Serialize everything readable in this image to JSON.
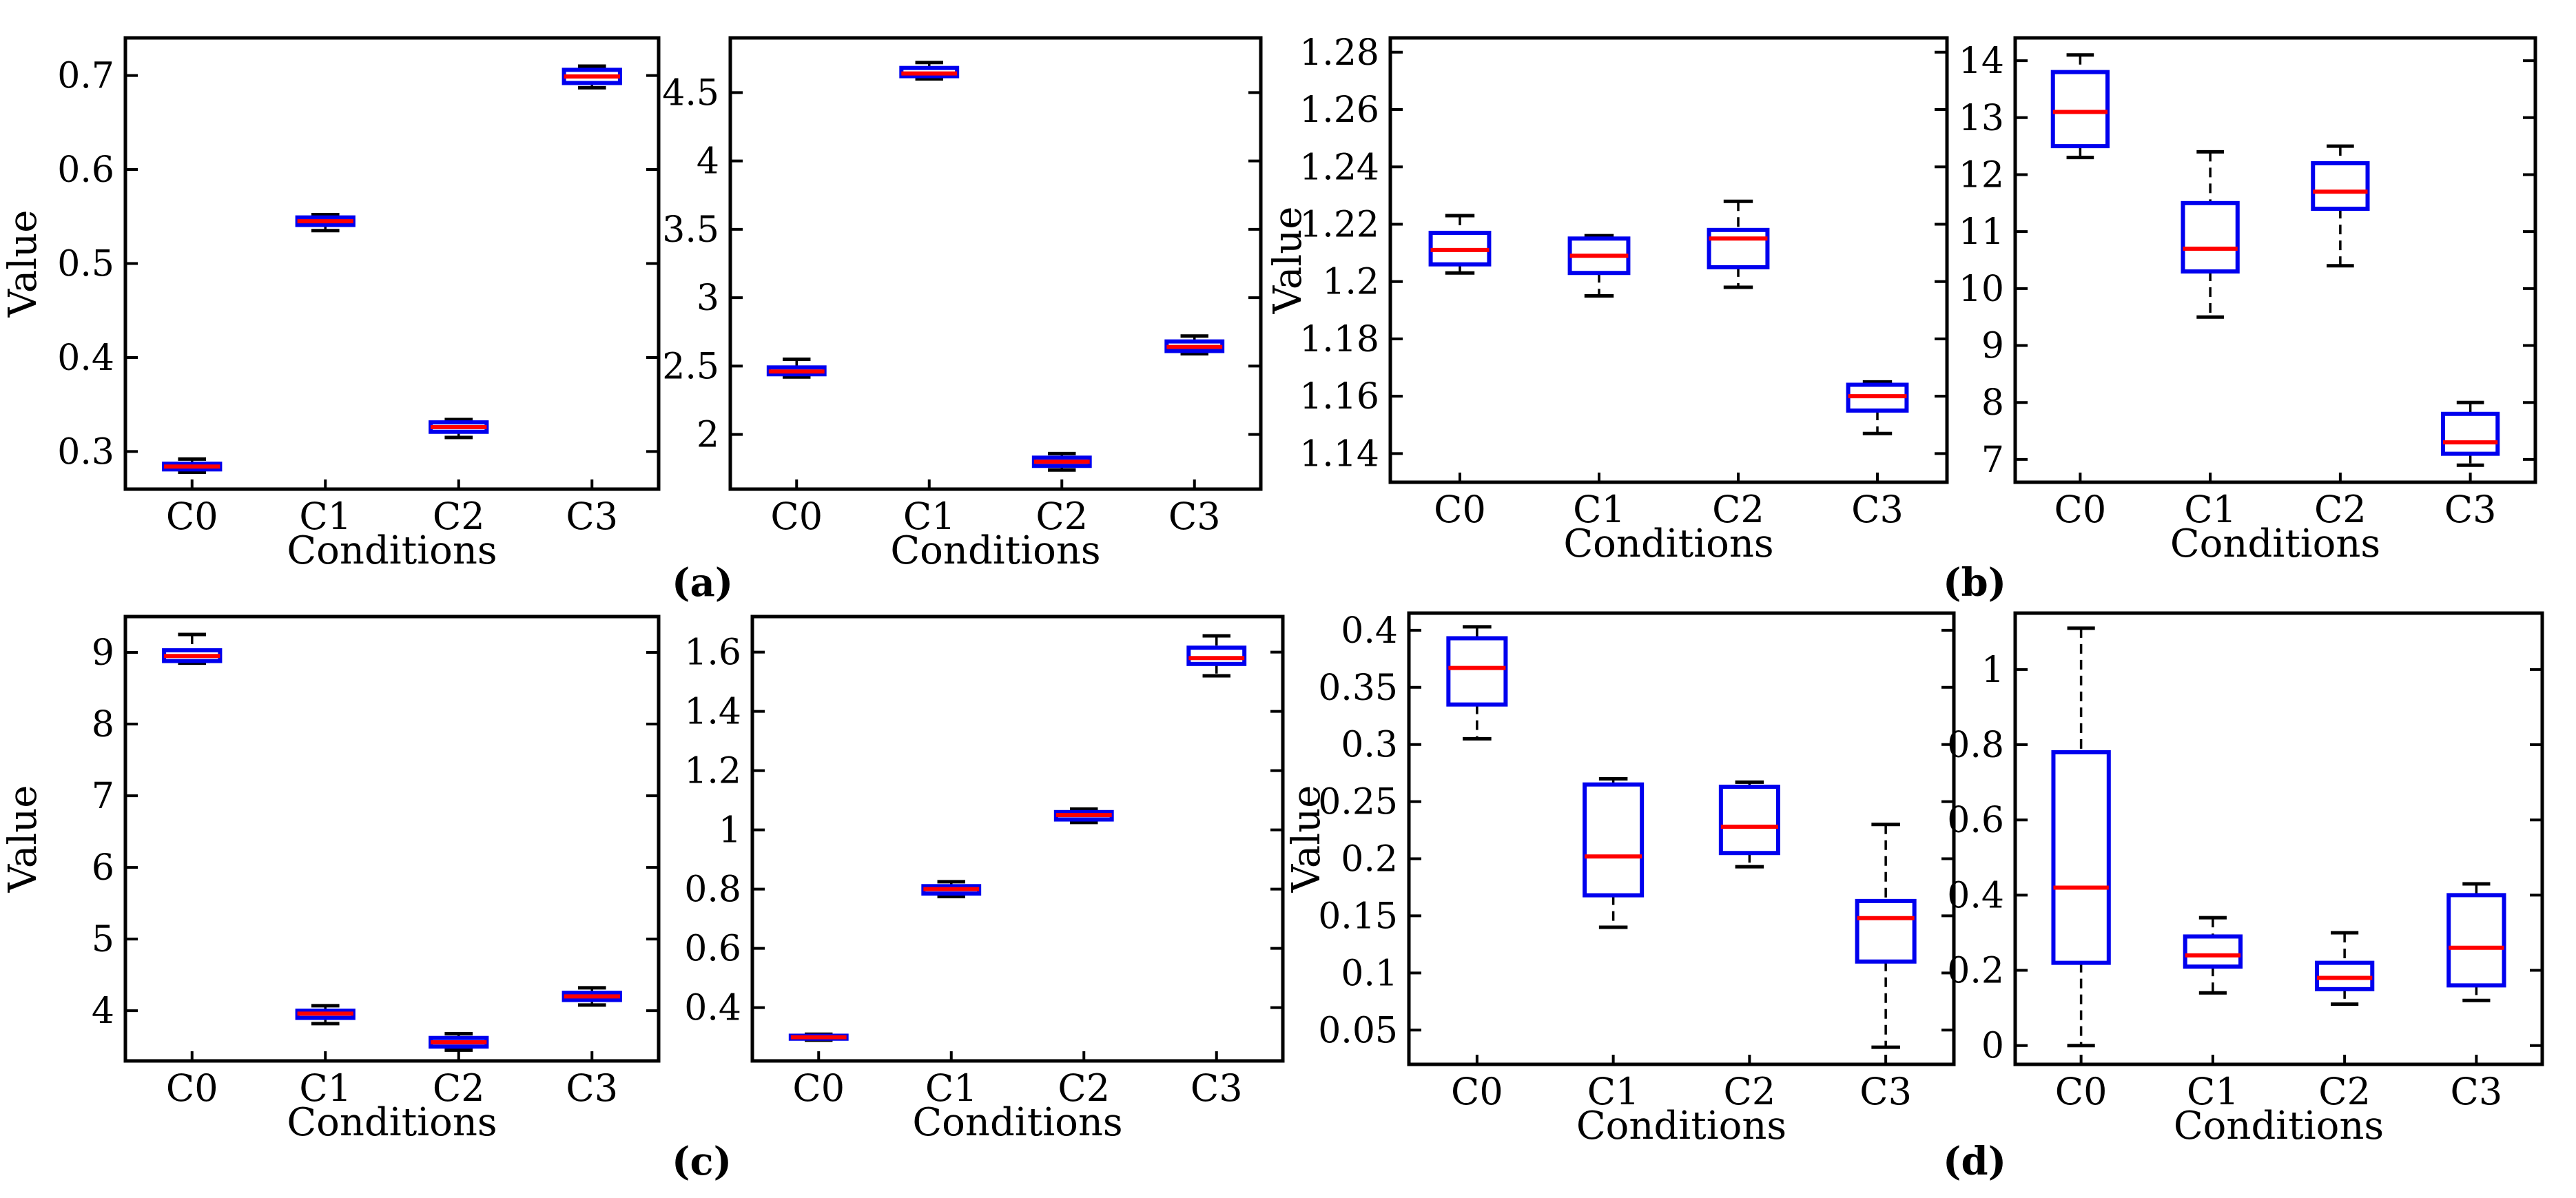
{
  "panel_labels": [
    "(a)",
    "(b)",
    "(c)",
    "(d)"
  ],
  "chart_data": [
    {
      "type": "box",
      "xlabel": "Conditions",
      "ylabel": "Value",
      "categories": [
        "C0",
        "C1",
        "C2",
        "C3"
      ],
      "ylim": [
        0.26,
        0.74
      ],
      "yticks": [
        0.3,
        0.4,
        0.5,
        0.6,
        0.7
      ],
      "yticklabels": [
        "0.3",
        "0.4",
        "0.5",
        "0.6",
        "0.7"
      ],
      "boxes": [
        {
          "low": 0.278,
          "q1": 0.281,
          "median": 0.284,
          "q3": 0.287,
          "high": 0.292
        },
        {
          "low": 0.535,
          "q1": 0.541,
          "median": 0.545,
          "q3": 0.549,
          "high": 0.552
        },
        {
          "low": 0.315,
          "q1": 0.321,
          "median": 0.326,
          "q3": 0.331,
          "high": 0.334
        },
        {
          "low": 0.687,
          "q1": 0.692,
          "median": 0.699,
          "q3": 0.706,
          "high": 0.71
        }
      ]
    },
    {
      "type": "box",
      "xlabel": "Conditions",
      "ylabel": "",
      "categories": [
        "C0",
        "C1",
        "C2",
        "C3"
      ],
      "ylim": [
        1.6,
        4.9
      ],
      "yticks": [
        2,
        2.5,
        3,
        3.5,
        4,
        4.5
      ],
      "yticklabels": [
        "2",
        "2.5",
        "3",
        "3.5",
        "4",
        "4.5"
      ],
      "boxes": [
        {
          "low": 2.42,
          "q1": 2.44,
          "median": 2.46,
          "q3": 2.49,
          "high": 2.55
        },
        {
          "low": 4.6,
          "q1": 4.62,
          "median": 4.64,
          "q3": 4.68,
          "high": 4.72
        },
        {
          "low": 1.74,
          "q1": 1.77,
          "median": 1.8,
          "q3": 1.83,
          "high": 1.86
        },
        {
          "low": 2.59,
          "q1": 2.61,
          "median": 2.64,
          "q3": 2.68,
          "high": 2.72
        }
      ]
    },
    {
      "type": "box",
      "xlabel": "Conditions",
      "ylabel": "Value",
      "categories": [
        "C0",
        "C1",
        "C2",
        "C3"
      ],
      "ylim": [
        1.13,
        1.285
      ],
      "yticks": [
        1.14,
        1.16,
        1.18,
        1.2,
        1.22,
        1.24,
        1.26,
        1.28
      ],
      "yticklabels": [
        "1.14",
        "1.16",
        "1.18",
        "1.2",
        "1.22",
        "1.24",
        "1.26",
        "1.28"
      ],
      "boxes": [
        {
          "low": 1.203,
          "q1": 1.206,
          "median": 1.211,
          "q3": 1.217,
          "high": 1.223
        },
        {
          "low": 1.195,
          "q1": 1.203,
          "median": 1.209,
          "q3": 1.215,
          "high": 1.216
        },
        {
          "low": 1.198,
          "q1": 1.205,
          "median": 1.215,
          "q3": 1.218,
          "high": 1.228
        },
        {
          "low": 1.147,
          "q1": 1.155,
          "median": 1.16,
          "q3": 1.164,
          "high": 1.165
        }
      ]
    },
    {
      "type": "box",
      "xlabel": "Conditions",
      "ylabel": "",
      "categories": [
        "C0",
        "C1",
        "C2",
        "C3"
      ],
      "ylim": [
        6.6,
        14.4
      ],
      "yticks": [
        7,
        8,
        9,
        10,
        11,
        12,
        13,
        14
      ],
      "yticklabels": [
        "7",
        "8",
        "9",
        "10",
        "11",
        "12",
        "13",
        "14"
      ],
      "boxes": [
        {
          "low": 12.3,
          "q1": 12.5,
          "median": 13.1,
          "q3": 13.8,
          "high": 14.1
        },
        {
          "low": 9.5,
          "q1": 10.3,
          "median": 10.7,
          "q3": 11.5,
          "high": 12.4
        },
        {
          "low": 10.4,
          "q1": 11.4,
          "median": 11.7,
          "q3": 12.2,
          "high": 12.5
        },
        {
          "low": 6.9,
          "q1": 7.1,
          "median": 7.3,
          "q3": 7.8,
          "high": 8.0
        }
      ]
    },
    {
      "type": "box",
      "xlabel": "Conditions",
      "ylabel": "Value",
      "categories": [
        "C0",
        "C1",
        "C2",
        "C3"
      ],
      "ylim": [
        3.3,
        9.5
      ],
      "yticks": [
        4,
        5,
        6,
        7,
        8,
        9
      ],
      "yticklabels": [
        "4",
        "5",
        "6",
        "7",
        "8",
        "9"
      ],
      "boxes": [
        {
          "low": 8.85,
          "q1": 8.88,
          "median": 8.95,
          "q3": 9.03,
          "high": 9.25
        },
        {
          "low": 3.82,
          "q1": 3.9,
          "median": 3.96,
          "q3": 4.0,
          "high": 4.07
        },
        {
          "low": 3.45,
          "q1": 3.5,
          "median": 3.56,
          "q3": 3.62,
          "high": 3.68
        },
        {
          "low": 4.08,
          "q1": 4.15,
          "median": 4.2,
          "q3": 4.25,
          "high": 4.32
        }
      ]
    },
    {
      "type": "box",
      "xlabel": "Conditions",
      "ylabel": "",
      "categories": [
        "C0",
        "C1",
        "C2",
        "C3"
      ],
      "ylim": [
        0.22,
        1.72
      ],
      "yticks": [
        0.4,
        0.6,
        0.8,
        1,
        1.2,
        1.4,
        1.6
      ],
      "yticklabels": [
        "0.4",
        "0.6",
        "0.8",
        "1",
        "1.2",
        "1.4",
        "1.6"
      ],
      "boxes": [
        {
          "low": 0.29,
          "q1": 0.295,
          "median": 0.3,
          "q3": 0.305,
          "high": 0.31
        },
        {
          "low": 0.775,
          "q1": 0.785,
          "median": 0.8,
          "q3": 0.81,
          "high": 0.825
        },
        {
          "low": 1.025,
          "q1": 1.035,
          "median": 1.05,
          "q3": 1.06,
          "high": 1.07
        },
        {
          "low": 1.52,
          "q1": 1.56,
          "median": 1.58,
          "q3": 1.615,
          "high": 1.655
        }
      ]
    },
    {
      "type": "box",
      "xlabel": "Conditions",
      "ylabel": "Value",
      "categories": [
        "C0",
        "C1",
        "C2",
        "C3"
      ],
      "ylim": [
        0.02,
        0.415
      ],
      "yticks": [
        0.05,
        0.1,
        0.15,
        0.2,
        0.25,
        0.3,
        0.35,
        0.4
      ],
      "yticklabels": [
        "0.05",
        "0.1",
        "0.15",
        "0.2",
        "0.25",
        "0.3",
        "0.35",
        "0.4"
      ],
      "boxes": [
        {
          "low": 0.305,
          "q1": 0.335,
          "median": 0.367,
          "q3": 0.393,
          "high": 0.403
        },
        {
          "low": 0.14,
          "q1": 0.168,
          "median": 0.202,
          "q3": 0.265,
          "high": 0.27
        },
        {
          "low": 0.193,
          "q1": 0.205,
          "median": 0.228,
          "q3": 0.263,
          "high": 0.267
        },
        {
          "low": 0.035,
          "q1": 0.11,
          "median": 0.148,
          "q3": 0.163,
          "high": 0.23
        }
      ]
    },
    {
      "type": "box",
      "xlabel": "Conditions",
      "ylabel": "",
      "categories": [
        "C0",
        "C1",
        "C2",
        "C3"
      ],
      "ylim": [
        -0.05,
        1.15
      ],
      "yticks": [
        0,
        0.2,
        0.4,
        0.6,
        0.8,
        1
      ],
      "yticklabels": [
        "0",
        "0.2",
        "0.4",
        "0.6",
        "0.8",
        "1"
      ],
      "boxes": [
        {
          "low": 0.0,
          "q1": 0.22,
          "median": 0.42,
          "q3": 0.78,
          "high": 1.11
        },
        {
          "low": 0.14,
          "q1": 0.21,
          "median": 0.24,
          "q3": 0.29,
          "high": 0.34
        },
        {
          "low": 0.11,
          "q1": 0.15,
          "median": 0.18,
          "q3": 0.22,
          "high": 0.3
        },
        {
          "low": 0.12,
          "q1": 0.16,
          "median": 0.26,
          "q3": 0.4,
          "high": 0.43
        }
      ]
    }
  ]
}
